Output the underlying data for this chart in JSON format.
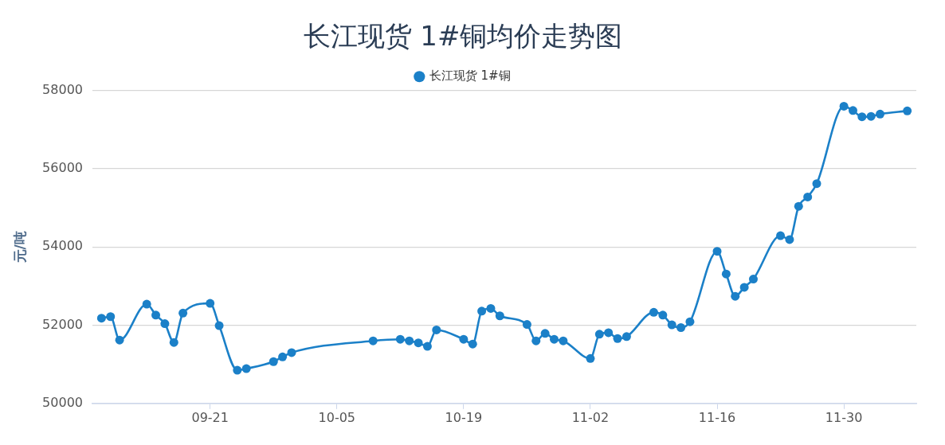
{
  "chart_data": {
    "type": "line",
    "title": "长江现货 1#铜均价走势图",
    "ylabel": "元/吨",
    "x": [
      "--09-09",
      "--09-10",
      "--09-11",
      "--09-14",
      "--09-15",
      "--09-16",
      "--09-17",
      "--09-18",
      "--09-21",
      "--09-22",
      "--09-24",
      "--09-25",
      "--09-28",
      "--09-29",
      "--09-30",
      "--10-09",
      "--10-12",
      "--10-13",
      "--10-14",
      "--10-15",
      "--10-16",
      "--10-19",
      "--10-20",
      "--10-21",
      "--10-22",
      "--10-23",
      "--10-26",
      "--10-27",
      "--10-28",
      "--10-29",
      "--10-30",
      "--11-02",
      "--11-03",
      "--11-04",
      "--11-05",
      "--11-06",
      "--11-09",
      "--11-10",
      "--11-11",
      "--11-12",
      "--11-13",
      "--11-16",
      "--11-17",
      "--11-18",
      "--11-19",
      "--11-20",
      "--11-23",
      "--11-24",
      "--11-25",
      "--11-26",
      "--11-27",
      "--11-30",
      "--12-01",
      "--12-02",
      "--12-03",
      "--12-04",
      "--12-07"
    ],
    "series": [
      {
        "name": "长江现货 1#铜",
        "color": "#1b80c8",
        "values": [
          52180,
          52220,
          51620,
          52540,
          52260,
          52040,
          51560,
          52310,
          52560,
          51990,
          50850,
          50890,
          51070,
          51190,
          51300,
          51600,
          51640,
          51600,
          51550,
          51460,
          51880,
          51640,
          51520,
          52360,
          52430,
          52240,
          52020,
          51600,
          51790,
          51640,
          51600,
          51150,
          51770,
          51810,
          51660,
          51710,
          52330,
          52260,
          52010,
          51940,
          52090,
          53890,
          53310,
          52740,
          52970,
          53180,
          54290,
          54190,
          55040,
          55280,
          55620,
          57600,
          57490,
          57330,
          57340,
          57400,
          57480
        ]
      }
    ],
    "xlim": [
      "--09-08",
      "--12-08"
    ],
    "xticks": [
      {
        "value": "--09-21",
        "label": "09-21"
      },
      {
        "value": "--10-05",
        "label": "10-05"
      },
      {
        "value": "--10-19",
        "label": "10-19"
      },
      {
        "value": "--11-02",
        "label": "11-02"
      },
      {
        "value": "--11-16",
        "label": "11-16"
      },
      {
        "value": "--11-30",
        "label": "11-30"
      }
    ],
    "ylim": [
      50000,
      58000
    ],
    "yticks": [
      50000,
      52000,
      54000,
      56000,
      58000
    ],
    "grid": "y",
    "legend": "top",
    "marker": "circle",
    "line_style": "solid"
  }
}
